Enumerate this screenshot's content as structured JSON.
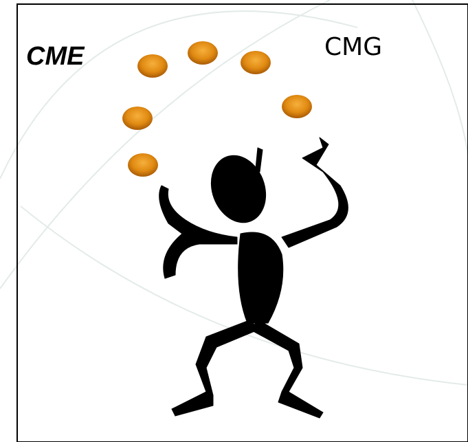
{
  "labels": {
    "left": "CME",
    "right": "CMG"
  }
}
